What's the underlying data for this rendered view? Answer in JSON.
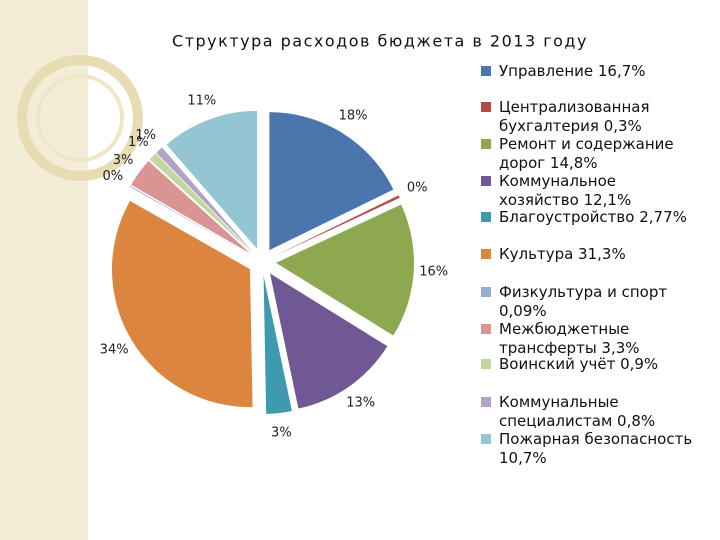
{
  "chart_data": {
    "type": "pie",
    "title": "Структура расходов бюджета в 2013 году",
    "categories": [
      "Управление  16,7%",
      "Централизованная бухгалтерия 0,3%",
      "Ремонт и содержание дорог 14,8%",
      "Коммунальное хозяйство 12,1%",
      "Благоустройство 2,77%",
      "Культура 31,3%",
      "Физкультура и спорт 0,09%",
      "Межбюджетные трансферты 3,3%",
      "Воинский учёт 0,9%",
      "Коммунальные специалистам 0,8%",
      "Пожарная безопасность 10,7%"
    ],
    "values": [
      17.8,
      0.3,
      15.8,
      12.9,
      3.0,
      33.6,
      0.1,
      3.4,
      1.0,
      0.9,
      11.4
    ],
    "value_labels": [
      "18%",
      "0%",
      "16%",
      "13%",
      "3%",
      "34%",
      "0%",
      "3%",
      "1%",
      "1%",
      "11%"
    ],
    "colors": [
      "#4a76ad",
      "#b34a47",
      "#8da84f",
      "#6f5894",
      "#3f9ab0",
      "#dc853e",
      "#97acd5",
      "#d99594",
      "#c3d69b",
      "#b3a2c7",
      "#93c5d3"
    ],
    "legend": "right"
  }
}
